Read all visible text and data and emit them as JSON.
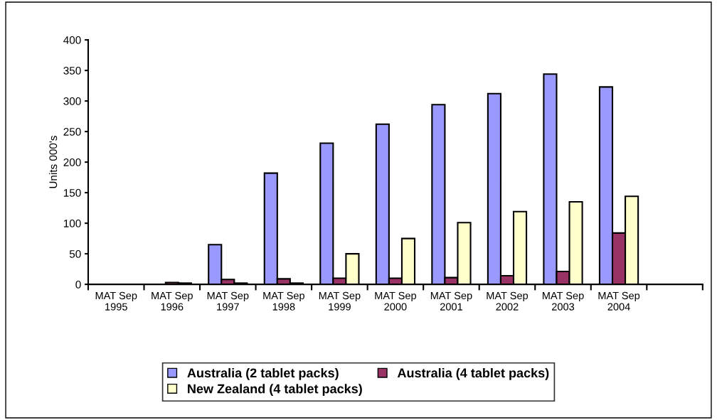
{
  "chart_data": {
    "type": "bar",
    "ylabel": "Units 000's",
    "categories": [
      "MAT Sep\n1995",
      "MAT Sep\n1996",
      "MAT Sep\n1997",
      "MAT Sep\n1998",
      "MAT Sep\n1999",
      "MAT Sep\n2000",
      "MAT Sep\n2001",
      "MAT Sep\n2002",
      "MAT Sep\n2003",
      "MAT Sep\n2004",
      null
    ],
    "series": [
      {
        "name": "Australia (2 tablet packs)",
        "color": "#9999ff",
        "values": [
          null,
          null,
          65,
          182,
          231,
          262,
          294,
          312,
          344,
          323,
          null
        ]
      },
      {
        "name": "Australia (4 tablet packs)",
        "color": "#993366",
        "values": [
          null,
          3,
          8,
          9,
          10,
          10,
          11,
          14,
          21,
          84,
          null
        ]
      },
      {
        "name": "New Zealand (4 tablet packs)",
        "color": "#ffffcc",
        "values": [
          null,
          2,
          2,
          2,
          50,
          75,
          101,
          119,
          135,
          144,
          null
        ]
      }
    ],
    "ylim": [
      0,
      400
    ],
    "yticks": [
      0,
      50,
      100,
      150,
      200,
      250,
      300,
      350,
      400
    ],
    "grid": false,
    "legend": "bottom"
  }
}
